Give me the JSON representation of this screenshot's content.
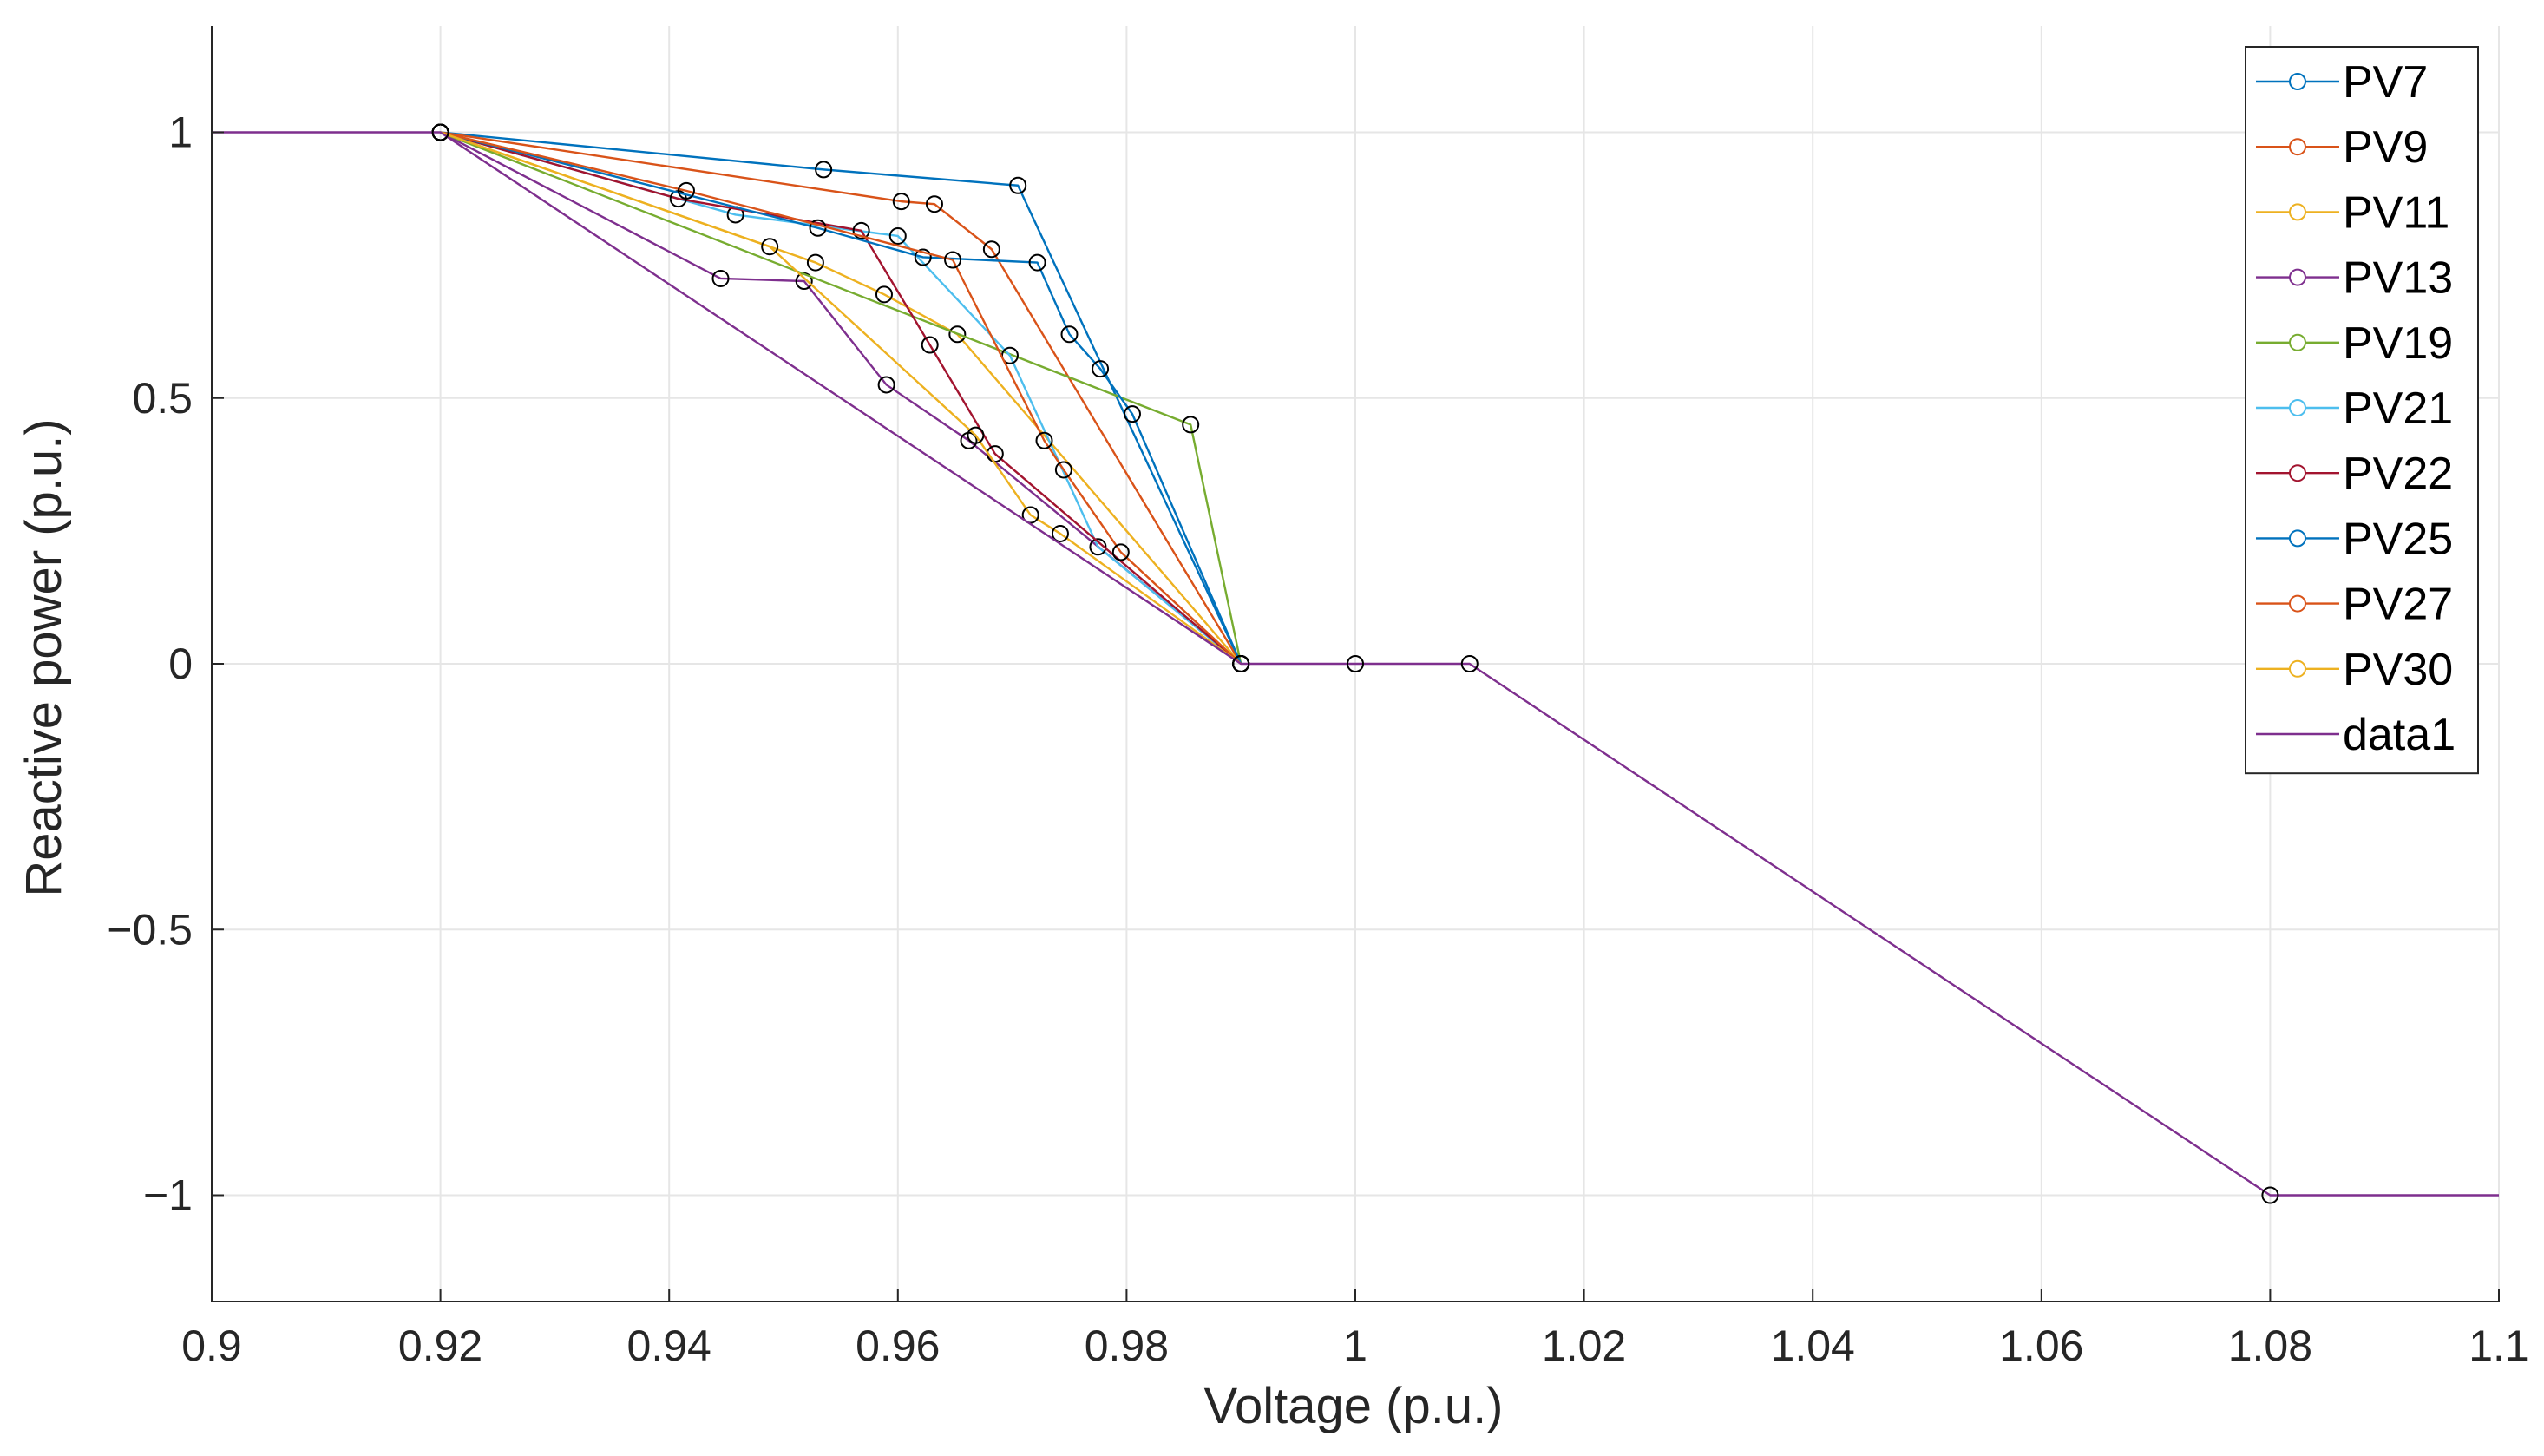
{
  "chart_data": {
    "type": "line",
    "title": "",
    "xlabel": "Voltage (p.u.)",
    "ylabel": "Reactive power (p.u.)",
    "xlim": [
      0.9,
      1.1
    ],
    "ylim": [
      -1.2,
      1.2
    ],
    "grid": true,
    "legend_position": "top-right",
    "x_ticks": [
      0.9,
      0.92,
      0.94,
      0.96,
      0.98,
      1,
      1.02,
      1.04,
      1.06,
      1.08,
      1.1
    ],
    "x_tick_labels": [
      "0.9",
      "0.92",
      "0.94",
      "0.96",
      "0.98",
      "1",
      "1.02",
      "1.04",
      "1.06",
      "1.08",
      "1.1"
    ],
    "y_ticks": [
      1,
      0.5,
      0,
      -0.5,
      -1
    ],
    "y_tick_labels": [
      "1",
      "0.5",
      "0",
      "−0.5",
      "−1"
    ],
    "colors": {
      "PV7": "#0072BD",
      "PV9": "#D95319",
      "PV11": "#EDB120",
      "PV13": "#7E2F8E",
      "PV19": "#77AC30",
      "PV21": "#4DBEEE",
      "PV22": "#A2142F",
      "PV25": "#0072BD",
      "PV27": "#D95319",
      "PV30": "#EDB120",
      "data1": "#7E2F8E"
    },
    "series": [
      {
        "name": "PV7",
        "x": [
          0.92,
          0.9535,
          0.9705,
          0.99
        ],
        "y": [
          1,
          0.93,
          0.9,
          0
        ]
      },
      {
        "name": "PV9",
        "x": [
          0.92,
          0.9603,
          0.9632,
          0.9682,
          0.99
        ],
        "y": [
          1,
          0.87,
          0.865,
          0.78,
          0
        ]
      },
      {
        "name": "PV11",
        "x": [
          0.92,
          0.9528,
          0.9588,
          0.9652,
          0.99
        ],
        "y": [
          1,
          0.755,
          0.695,
          0.62,
          0
        ]
      },
      {
        "name": "PV13",
        "x": [
          0.92,
          0.9445,
          0.9518,
          0.959,
          0.9662,
          0.99
        ],
        "y": [
          1,
          0.725,
          0.72,
          0.525,
          0.42,
          0
        ]
      },
      {
        "name": "PV19",
        "x": [
          0.92,
          0.9856,
          0.99
        ],
        "y": [
          1,
          0.45,
          0
        ]
      },
      {
        "name": "PV21",
        "x": [
          0.92,
          0.9458,
          0.96,
          0.9698,
          0.9775,
          0.99
        ],
        "y": [
          1,
          0.845,
          0.805,
          0.58,
          0.22,
          0
        ]
      },
      {
        "name": "PV22",
        "x": [
          0.92,
          0.9408,
          0.9568,
          0.9628,
          0.9685,
          0.99
        ],
        "y": [
          1,
          0.875,
          0.815,
          0.6,
          0.395,
          0
        ]
      },
      {
        "name": "PV25",
        "x": [
          0.92,
          0.953,
          0.9622,
          0.9722,
          0.975,
          0.9777,
          0.9805,
          0.99
        ],
        "y": [
          1,
          0.82,
          0.765,
          0.755,
          0.62,
          0.555,
          0.47,
          0
        ]
      },
      {
        "name": "PV27",
        "x": [
          0.92,
          0.9415,
          0.9648,
          0.9728,
          0.9745,
          0.9795,
          0.99
        ],
        "y": [
          1,
          0.89,
          0.76,
          0.42,
          0.365,
          0.21,
          0
        ]
      },
      {
        "name": "PV30",
        "x": [
          0.92,
          0.9488,
          0.9668,
          0.9716,
          0.9742,
          0.99
        ],
        "y": [
          1,
          0.785,
          0.43,
          0.28,
          0.245,
          0
        ]
      },
      {
        "name": "data1",
        "x": [
          0.9,
          0.92,
          0.99,
          1.0,
          1.01,
          1.08,
          1.1
        ],
        "y": [
          1,
          1,
          0,
          0,
          0,
          -1,
          -1
        ],
        "markers_x": [
          0.92,
          0.99,
          1.0,
          1.01,
          1.08
        ],
        "markers_y": [
          1,
          0,
          0,
          0,
          -1
        ]
      }
    ]
  }
}
